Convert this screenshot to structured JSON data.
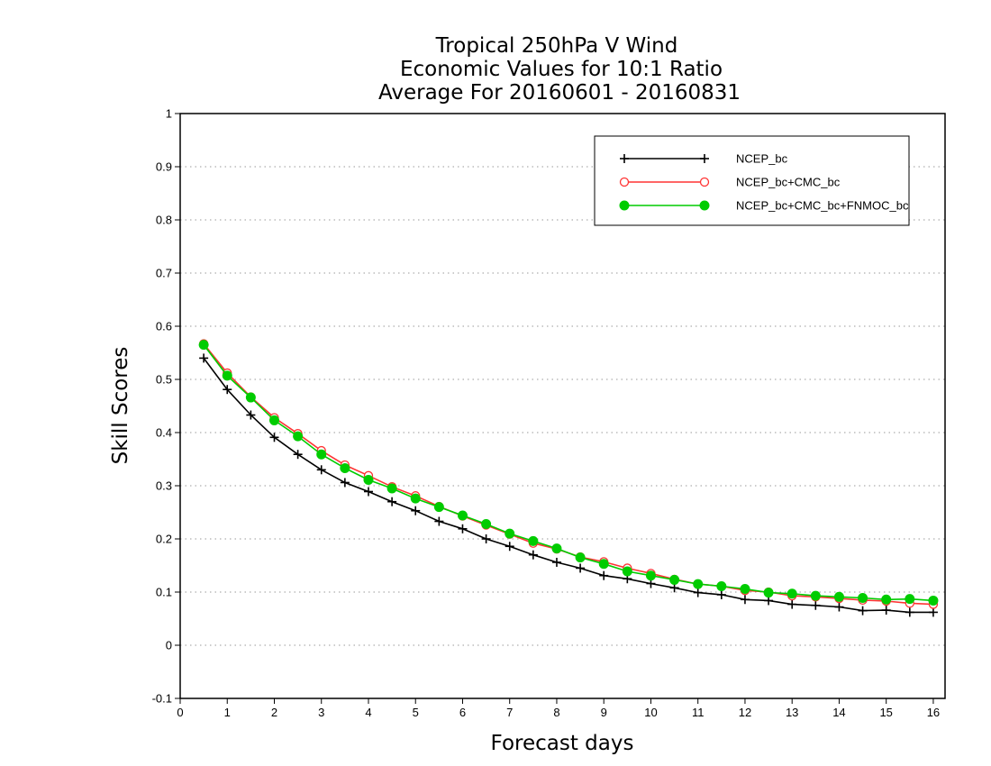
{
  "chart_data": {
    "type": "line",
    "title": [
      "Tropical 250hPa V Wind",
      "Economic Values for 10:1 Ratio",
      "Average For 20160601 - 20160831"
    ],
    "xlabel": "Forecast days",
    "ylabel": "Skill Scores",
    "xlim": [
      0,
      16.25
    ],
    "ylim": [
      -0.1,
      1
    ],
    "xticks": [
      "0",
      "1",
      "2",
      "3",
      "4",
      "5",
      "6",
      "7",
      "8",
      "9",
      "10",
      "11",
      "12",
      "13",
      "14",
      "15",
      "16"
    ],
    "yticks": [
      "-0.1",
      "0",
      "0.1",
      "0.2",
      "0.3",
      "0.4",
      "0.5",
      "0.6",
      "0.7",
      "0.8",
      "0.9",
      "1"
    ],
    "grid": "horizontal dotted",
    "legend_position": "top-right",
    "x": [
      0.5,
      1,
      1.5,
      2,
      2.5,
      3,
      3.5,
      4,
      4.5,
      5,
      5.5,
      6,
      6.5,
      7,
      7.5,
      8,
      8.5,
      9,
      9.5,
      10,
      10.5,
      11,
      11.5,
      12,
      12.5,
      13,
      13.5,
      14,
      14.5,
      15,
      15.5,
      16
    ],
    "series": [
      {
        "name": "NCEP_bc",
        "color": "#000000",
        "marker": "plus",
        "values": [
          0.54,
          0.481,
          0.433,
          0.391,
          0.359,
          0.33,
          0.306,
          0.289,
          0.27,
          0.253,
          0.233,
          0.219,
          0.2,
          0.186,
          0.17,
          0.156,
          0.145,
          0.131,
          0.125,
          0.116,
          0.108,
          0.099,
          0.095,
          0.086,
          0.084,
          0.077,
          0.075,
          0.072,
          0.065,
          0.066,
          0.062,
          0.062
        ]
      },
      {
        "name": "NCEP_bc+CMC_bc",
        "color": "#ff3333",
        "marker": "open-circle",
        "values": [
          0.567,
          0.512,
          0.467,
          0.428,
          0.398,
          0.366,
          0.339,
          0.319,
          0.298,
          0.281,
          0.261,
          0.243,
          0.226,
          0.209,
          0.192,
          0.181,
          0.166,
          0.157,
          0.145,
          0.135,
          0.124,
          0.115,
          0.111,
          0.103,
          0.1,
          0.093,
          0.091,
          0.088,
          0.085,
          0.083,
          0.079,
          0.077
        ]
      },
      {
        "name": "NCEP_bc+CMC_bc+FNMOC_bc",
        "color": "#00cc00",
        "marker": "filled-circle",
        "values": [
          0.565,
          0.507,
          0.466,
          0.423,
          0.393,
          0.359,
          0.333,
          0.311,
          0.295,
          0.276,
          0.26,
          0.244,
          0.228,
          0.21,
          0.196,
          0.182,
          0.165,
          0.153,
          0.139,
          0.131,
          0.123,
          0.115,
          0.111,
          0.106,
          0.099,
          0.097,
          0.093,
          0.091,
          0.089,
          0.086,
          0.087,
          0.084
        ]
      }
    ]
  }
}
